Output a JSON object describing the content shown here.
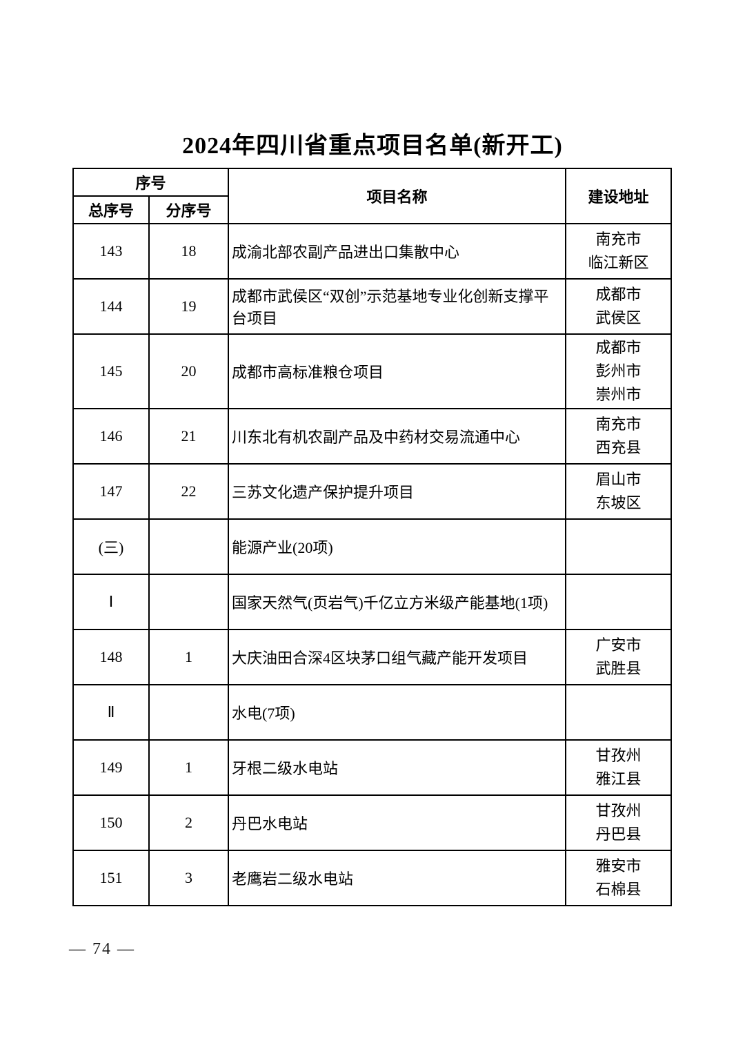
{
  "colors": {
    "background": "#ffffff",
    "text": "#000000",
    "border": "#000000"
  },
  "page": {
    "title": "2024年四川省重点项目名单(新开工)",
    "footer_page_number": "— 74 —"
  },
  "table": {
    "header": {
      "seq_group": "序号",
      "total_seq": "总序号",
      "sub_seq": "分序号",
      "project_name": "项目名称",
      "location": "建设地址"
    },
    "rows": [
      {
        "total": "143",
        "sub": "18",
        "name": "成渝北部农副产品进出口集散中心",
        "location": "南充市\n临江新区"
      },
      {
        "total": "144",
        "sub": "19",
        "name": "成都市武侯区“双创”示范基地专业化创新支撑平台项目",
        "location": "成都市\n武侯区"
      },
      {
        "total": "145",
        "sub": "20",
        "name": "成都市高标准粮仓项目",
        "location": "成都市\n彭州市\n崇州市"
      },
      {
        "total": "146",
        "sub": "21",
        "name": "川东北有机农副产品及中药材交易流通中心",
        "location": "南充市\n西充县"
      },
      {
        "total": "147",
        "sub": "22",
        "name": "三苏文化遗产保护提升项目",
        "location": "眉山市\n东坡区"
      },
      {
        "total": "(三)",
        "sub": "",
        "name": "能源产业(20项)",
        "location": ""
      },
      {
        "total": "Ⅰ",
        "sub": "",
        "name": "国家天然气(页岩气)千亿立方米级产能基地(1项)",
        "location": ""
      },
      {
        "total": "148",
        "sub": "1",
        "name": "大庆油田合深4区块茅口组气藏产能开发项目",
        "location": "广安市\n武胜县"
      },
      {
        "total": "Ⅱ",
        "sub": "",
        "name": "水电(7项)",
        "location": ""
      },
      {
        "total": "149",
        "sub": "1",
        "name": "牙根二级水电站",
        "location": "甘孜州\n雅江县"
      },
      {
        "total": "150",
        "sub": "2",
        "name": "丹巴水电站",
        "location": "甘孜州\n丹巴县"
      },
      {
        "total": "151",
        "sub": "3",
        "name": "老鹰岩二级水电站",
        "location": "雅安市\n石棉县"
      }
    ]
  }
}
